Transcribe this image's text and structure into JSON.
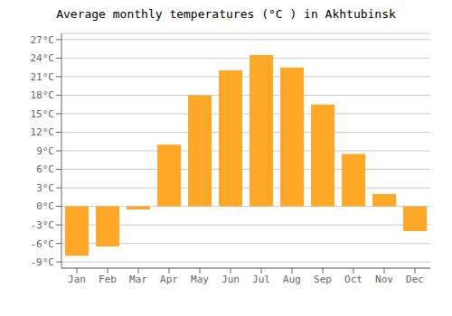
{
  "chart_data": {
    "type": "bar",
    "title": "Average monthly temperatures (°C ) in Akhtubinsk",
    "categories": [
      "Jan",
      "Feb",
      "Mar",
      "Apr",
      "May",
      "Jun",
      "Jul",
      "Aug",
      "Sep",
      "Oct",
      "Nov",
      "Dec"
    ],
    "values": [
      -8,
      -6.5,
      -0.5,
      10,
      18,
      22,
      24.5,
      22.5,
      16.5,
      8.5,
      2,
      -4
    ],
    "color": "#FFA726",
    "ylim": [
      -10,
      28
    ],
    "yticks": [
      {
        "value": -9,
        "label": "-9°C"
      },
      {
        "value": -6,
        "label": "-6°C"
      },
      {
        "value": -3,
        "label": "-3°C"
      },
      {
        "value": 0,
        "label": "0°C"
      },
      {
        "value": 3,
        "label": "3°C"
      },
      {
        "value": 6,
        "label": "6°C"
      },
      {
        "value": 9,
        "label": "9°C"
      },
      {
        "value": 12,
        "label": "12°C"
      },
      {
        "value": 15,
        "label": "15°C"
      },
      {
        "value": 18,
        "label": "18°C"
      },
      {
        "value": 21,
        "label": "21°C"
      },
      {
        "value": 24,
        "label": "24°C"
      },
      {
        "value": 27,
        "label": "27°C"
      }
    ],
    "grid": true
  }
}
